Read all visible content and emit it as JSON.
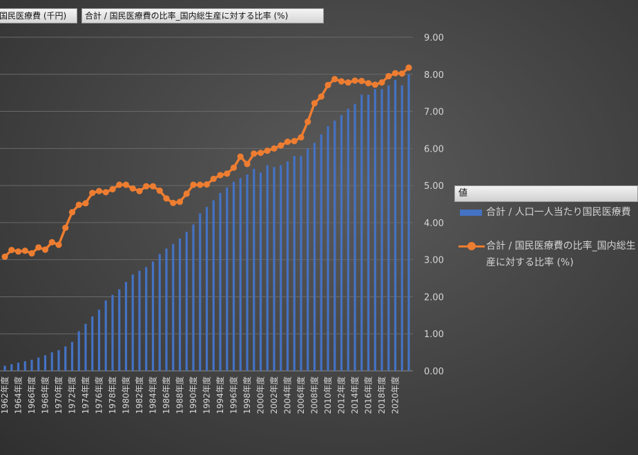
{
  "field_buttons": [
    "国民医療費 (千円)",
    "合計 / 国民医療費の比率_国内総生産に対する比率 (%)"
  ],
  "legend": {
    "title": "値",
    "items": [
      "合計 / 人口一人当たり国民医療費",
      "合計 / 国民医療費の比率_国内総生産に対する比率 (%)"
    ]
  },
  "chart_data": {
    "type": "bar+line",
    "right_axis": {
      "range": [
        0,
        9
      ],
      "ticks": [
        "0.00",
        "1.00",
        "2.00",
        "3.00",
        "4.00",
        "5.00",
        "6.00",
        "7.00",
        "8.00",
        "9.00"
      ]
    },
    "x_tick_labels": [
      "1962年度",
      "1964年度",
      "1966年度",
      "1968年度",
      "1970年度",
      "1972年度",
      "1974年度",
      "1976年度",
      "1978年度",
      "1980年度",
      "1982年度",
      "1984年度",
      "1986年度",
      "1988年度",
      "1990年度",
      "1992年度",
      "1994年度",
      "1996年度",
      "1998年度",
      "2000年度",
      "2002年度",
      "2004年度",
      "2006年度",
      "2008年度",
      "2010年度",
      "2012年度",
      "2014年度",
      "2016年度",
      "2018年度",
      "2020年度"
    ],
    "x_start_year": 1962,
    "bars_scaled": [
      0.14,
      0.18,
      0.22,
      0.26,
      0.3,
      0.36,
      0.42,
      0.5,
      0.56,
      0.66,
      0.78,
      1.07,
      1.27,
      1.47,
      1.65,
      1.9,
      2.05,
      2.2,
      2.4,
      2.6,
      2.7,
      2.8,
      2.95,
      3.15,
      3.3,
      3.42,
      3.57,
      3.75,
      3.95,
      4.25,
      4.42,
      4.6,
      4.8,
      4.95,
      5.1,
      5.2,
      5.3,
      5.45,
      5.35,
      5.55,
      5.5,
      5.55,
      5.65,
      5.8,
      5.8,
      6.0,
      6.15,
      6.38,
      6.6,
      6.75,
      6.9,
      7.07,
      7.2,
      7.45,
      7.45,
      7.6,
      7.6,
      7.7,
      7.85,
      7.7,
      8.0
    ],
    "series": [
      {
        "name": "合計 / 国民医療費の比率_国内総生産に対する比率 (%)",
        "type": "line",
        "values": [
          3.08,
          3.26,
          3.22,
          3.24,
          3.17,
          3.33,
          3.27,
          3.47,
          3.4,
          3.86,
          4.28,
          4.48,
          4.52,
          4.8,
          4.85,
          4.82,
          4.9,
          5.02,
          5.02,
          4.92,
          4.85,
          4.98,
          4.98,
          4.86,
          4.65,
          4.53,
          4.56,
          4.78,
          5.02,
          5.02,
          5.03,
          5.18,
          5.28,
          5.32,
          5.48,
          5.78,
          5.58,
          5.86,
          5.88,
          5.94,
          6.0,
          6.08,
          6.18,
          6.2,
          6.3,
          6.72,
          7.22,
          7.4,
          7.71,
          7.87,
          7.81,
          7.78,
          7.83,
          7.82,
          7.76,
          7.72,
          7.78,
          7.95,
          8.03,
          8.02,
          8.18
        ]
      }
    ]
  }
}
